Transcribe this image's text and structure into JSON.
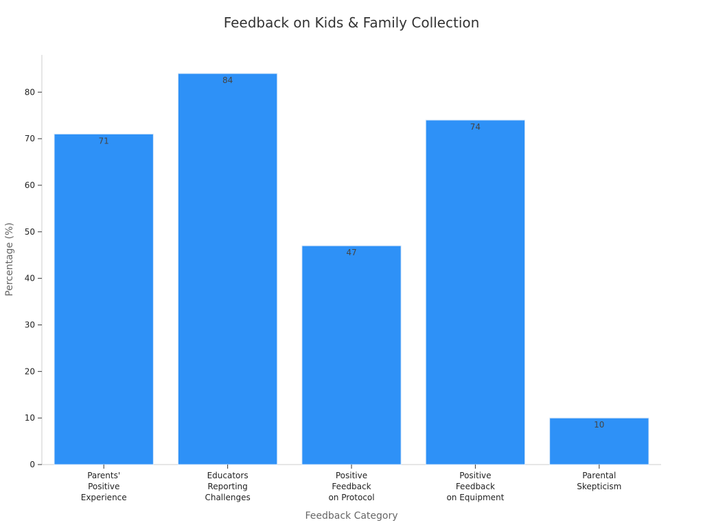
{
  "chart_data": {
    "type": "bar",
    "title": "Feedback on Kids & Family Collection",
    "xlabel": "Feedback Category",
    "ylabel": "Percentage (%)",
    "categories": [
      [
        "Parents'",
        "Positive",
        "Experience"
      ],
      [
        "Educators",
        "Reporting",
        "Challenges"
      ],
      [
        "Positive",
        "Feedback",
        "on Protocol"
      ],
      [
        "Positive",
        "Feedback",
        "on Equipment"
      ],
      [
        "Parental",
        "Skepticism"
      ]
    ],
    "values": [
      71,
      84,
      47,
      74,
      10
    ],
    "data_labels": [
      "71",
      "84",
      "47",
      "74",
      "10"
    ],
    "ylim": [
      0,
      88
    ],
    "yticks": [
      0,
      10,
      20,
      30,
      40,
      50,
      60,
      70,
      80
    ],
    "bar_color": "#2e91f7",
    "grid": false,
    "legend": "none"
  }
}
